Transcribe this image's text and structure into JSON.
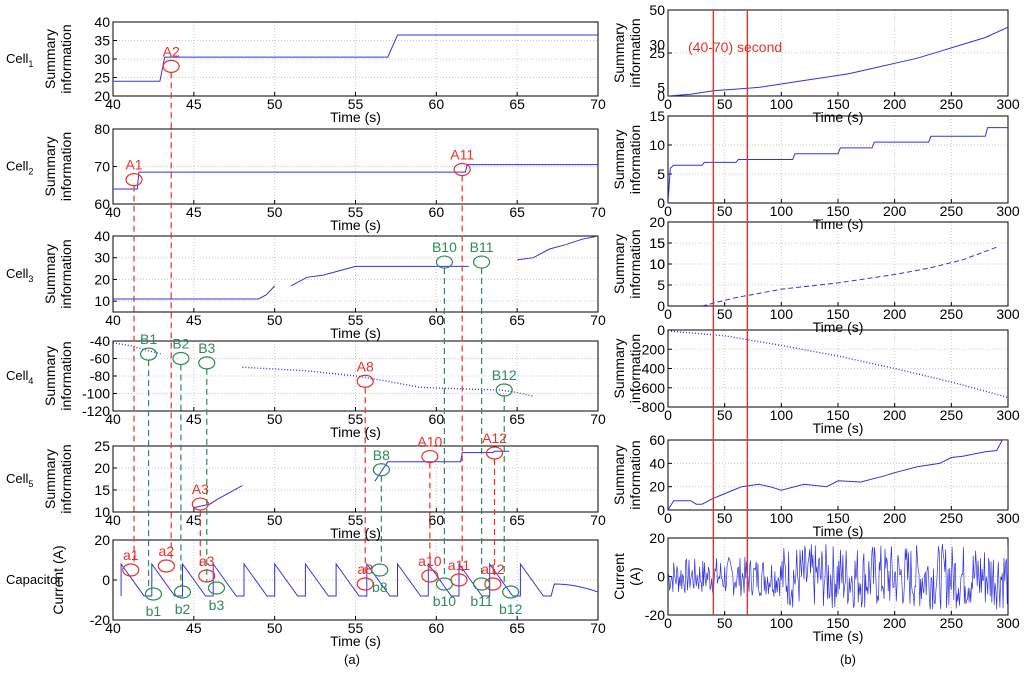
{
  "figure": {
    "panel_labels": [
      "(a)",
      "(b)"
    ],
    "window_label": "(40-70) second",
    "time_label": "Time  (s)",
    "colors": {
      "signal": "#3333dd",
      "red": "#e8302a",
      "green": "#2e8b57",
      "grid": "#c8c8c8"
    }
  },
  "chart_data": [
    {
      "id": "a-cell1",
      "type": "line",
      "row_label": "Cell",
      "row_sub": "1",
      "ylabel": [
        "Summary",
        "information"
      ],
      "xlabel": "Time  (s)",
      "xlim": [
        40,
        70
      ],
      "ylim": [
        20,
        40
      ],
      "xticks": [
        40,
        45,
        50,
        55,
        60,
        65,
        70
      ],
      "yticks": [
        20,
        25,
        30,
        35,
        40
      ],
      "series": [
        {
          "name": "Cell1",
          "style": "line",
          "x": [
            40,
            42.9,
            43.2,
            57,
            57.6,
            70
          ],
          "y": [
            24,
            24,
            30.5,
            30.5,
            36.5,
            36.5
          ]
        }
      ],
      "annotations": [
        {
          "label": "A2",
          "x": 43.6,
          "y": 28,
          "color": "red"
        }
      ]
    },
    {
      "id": "a-cell2",
      "type": "line",
      "row_label": "Cell",
      "row_sub": "2",
      "ylabel": [
        "Summary",
        "information"
      ],
      "xlabel": "Time  (s)",
      "xlim": [
        40,
        70
      ],
      "ylim": [
        60,
        80
      ],
      "xticks": [
        40,
        45,
        50,
        55,
        60,
        65,
        70
      ],
      "yticks": [
        60,
        70,
        80
      ],
      "series": [
        {
          "name": "Cell2",
          "style": "line",
          "x": [
            40,
            41.5,
            41.6,
            61.8,
            61.9,
            70
          ],
          "y": [
            64,
            64,
            68.5,
            68.5,
            70.5,
            70.5
          ]
        }
      ],
      "annotations": [
        {
          "label": "A1",
          "x": 41.3,
          "y": 66.5,
          "color": "red"
        },
        {
          "label": "A11",
          "x": 61.6,
          "y": 69.2,
          "color": "red"
        }
      ]
    },
    {
      "id": "a-cell3",
      "type": "line",
      "row_label": "Cell",
      "row_sub": "3",
      "ylabel": [
        "Summary",
        "information"
      ],
      "xlabel": "Time  (s)",
      "xlim": [
        40,
        70
      ],
      "ylim": [
        5,
        40
      ],
      "xticks": [
        40,
        45,
        50,
        55,
        60,
        65,
        70
      ],
      "yticks": [
        10,
        20,
        30,
        40
      ],
      "series": [
        {
          "name": "s1",
          "style": "line",
          "x": [
            40,
            49,
            49.5,
            50
          ],
          "y": [
            11,
            11,
            13,
            17
          ]
        },
        {
          "name": "s2",
          "style": "line",
          "x": [
            51,
            52,
            53,
            55,
            62
          ],
          "y": [
            17,
            21,
            22,
            26,
            26
          ]
        },
        {
          "name": "s3",
          "style": "line",
          "x": [
            65,
            66,
            67,
            68,
            69,
            70
          ],
          "y": [
            29,
            30,
            34,
            36,
            38.5,
            40
          ]
        }
      ],
      "annotations": [
        {
          "label": "B10",
          "x": 60.5,
          "y": 28,
          "color": "green"
        },
        {
          "label": "B11",
          "x": 62.8,
          "y": 28,
          "color": "green"
        }
      ]
    },
    {
      "id": "a-cell4",
      "type": "line",
      "row_label": "Cell",
      "row_sub": "4",
      "ylabel": [
        "Summary",
        "information"
      ],
      "xlabel": "Time  (s)",
      "xlim": [
        40,
        70
      ],
      "ylim": [
        -120,
        -40
      ],
      "xticks": [
        40,
        45,
        50,
        55,
        60,
        65,
        70
      ],
      "yticks": [
        -120,
        -100,
        -80,
        -60,
        -40
      ],
      "series": [
        {
          "name": "s1",
          "style": "dotted",
          "x": [
            40,
            41,
            42,
            43
          ],
          "y": [
            -42,
            -45,
            -50,
            -55
          ]
        },
        {
          "name": "s2",
          "style": "dotted",
          "x": [
            48,
            50,
            52,
            55,
            57,
            59,
            62,
            64,
            65,
            66
          ],
          "y": [
            -70,
            -72,
            -74,
            -80,
            -86,
            -93,
            -95,
            -96,
            -99,
            -103
          ]
        }
      ],
      "annotations": [
        {
          "label": "B1",
          "x": 42.2,
          "y": -55,
          "color": "green"
        },
        {
          "label": "B2",
          "x": 44.2,
          "y": -60,
          "color": "green"
        },
        {
          "label": "B3",
          "x": 45.8,
          "y": -65,
          "color": "green"
        },
        {
          "label": "A8",
          "x": 55.6,
          "y": -86,
          "color": "red"
        },
        {
          "label": "B12",
          "x": 64.2,
          "y": -96,
          "color": "green"
        }
      ]
    },
    {
      "id": "a-cell5",
      "type": "line",
      "row_label": "Cell",
      "row_sub": "5",
      "ylabel": [
        "Summary",
        "information"
      ],
      "xlabel": "Time  (s)",
      "xlim": [
        40,
        70
      ],
      "ylim": [
        10,
        25
      ],
      "xticks": [
        40,
        45,
        50,
        55,
        60,
        65,
        70
      ],
      "yticks": [
        10,
        15,
        20,
        25
      ],
      "series": [
        {
          "name": "s1",
          "style": "line",
          "x": [
            45,
            46,
            46.5,
            47,
            48
          ],
          "y": [
            11,
            11.8,
            13,
            14,
            16
          ]
        },
        {
          "name": "s2",
          "style": "line",
          "x": [
            56.2,
            57,
            57.4,
            61.5,
            61.6,
            63.5,
            63.6,
            64.5
          ],
          "y": [
            17,
            21.4,
            21.4,
            21.4,
            23.5,
            23.5,
            23.8,
            23.8
          ]
        }
      ],
      "annotations": [
        {
          "label": "A3",
          "x": 45.4,
          "y": 11.8,
          "color": "red"
        },
        {
          "label": "B8",
          "x": 56.6,
          "y": 19.6,
          "color": "green"
        },
        {
          "label": "A10",
          "x": 59.6,
          "y": 22.6,
          "color": "red"
        },
        {
          "label": "A12",
          "x": 63.6,
          "y": 23.4,
          "color": "red"
        }
      ]
    },
    {
      "id": "a-capacitor",
      "type": "line",
      "row_label": "Capacitor",
      "ylabel": [
        "Current (A)"
      ],
      "xlabel": "Time  (s)",
      "xlim": [
        40,
        70
      ],
      "ylim": [
        -20,
        20
      ],
      "xticks": [
        40,
        45,
        50,
        55,
        60,
        65,
        70
      ],
      "yticks": [
        -20,
        0,
        20
      ],
      "series": [
        {
          "name": "current",
          "style": "sawtooth",
          "start": 40.5,
          "period": 1.9,
          "cycles": 14,
          "high": 8,
          "low": -8
        }
      ],
      "annotations": [
        {
          "label": "a1",
          "x": 41.1,
          "y": 5,
          "color": "red",
          "pos": "above"
        },
        {
          "label": "a2",
          "x": 43.3,
          "y": 7,
          "color": "red",
          "pos": "above"
        },
        {
          "label": "a3",
          "x": 45.8,
          "y": 2,
          "color": "red",
          "pos": "above"
        },
        {
          "label": "a8",
          "x": 55.6,
          "y": -2,
          "color": "red",
          "pos": "above"
        },
        {
          "label": "a10",
          "x": 59.6,
          "y": 2,
          "color": "red",
          "pos": "above"
        },
        {
          "label": "a11",
          "x": 61.4,
          "y": 0,
          "color": "red",
          "pos": "above"
        },
        {
          "label": "a12",
          "x": 63.5,
          "y": -2,
          "color": "red",
          "pos": "above"
        },
        {
          "label": "b1",
          "x": 42.5,
          "y": -7,
          "color": "green",
          "pos": "below"
        },
        {
          "label": "b2",
          "x": 44.3,
          "y": -6,
          "color": "green",
          "pos": "below"
        },
        {
          "label": "b3",
          "x": 46.4,
          "y": -4,
          "color": "green",
          "pos": "below"
        },
        {
          "label": "b8",
          "x": 56.5,
          "y": 5,
          "color": "green",
          "pos": "below"
        },
        {
          "label": "b10",
          "x": 60.5,
          "y": -2,
          "color": "green",
          "pos": "below"
        },
        {
          "label": "b11",
          "x": 62.8,
          "y": -2,
          "color": "green",
          "pos": "below"
        },
        {
          "label": "b12",
          "x": 64.6,
          "y": -6,
          "color": "green",
          "pos": "below"
        }
      ]
    },
    {
      "id": "b-cell1",
      "type": "line",
      "ylabel": [
        "Summary",
        "information"
      ],
      "xlabel": "Time  (s)",
      "xlim": [
        0,
        300
      ],
      "ylim": [
        0,
        50
      ],
      "xticks": [
        0,
        50,
        100,
        150,
        200,
        250,
        300
      ],
      "yticks": [
        0,
        25,
        50
      ],
      "overlap_ticks": [
        5,
        30
      ],
      "series": [
        {
          "name": "Cell1",
          "style": "line",
          "x": [
            0,
            20,
            40,
            60,
            80,
            100,
            120,
            140,
            160,
            180,
            200,
            220,
            240,
            260,
            280,
            300
          ],
          "y": [
            0,
            1,
            3,
            4,
            5,
            7,
            9,
            11,
            13,
            16,
            19,
            22,
            26,
            30,
            34,
            40
          ]
        }
      ]
    },
    {
      "id": "b-cell2",
      "type": "line",
      "ylabel": [
        "Summary",
        "information"
      ],
      "xlabel": "Time  (s)",
      "xlim": [
        0,
        300
      ],
      "ylim": [
        0,
        15
      ],
      "xticks": [
        0,
        50,
        100,
        150,
        200,
        250,
        300
      ],
      "yticks": [
        0,
        5,
        10
      ],
      "overlap_ticks": [
        15
      ],
      "series": [
        {
          "name": "Cell2",
          "style": "line",
          "x": [
            0,
            2,
            5,
            30,
            32,
            60,
            62,
            110,
            112,
            150,
            152,
            180,
            182,
            230,
            232,
            280,
            282,
            300
          ],
          "y": [
            0,
            6,
            6.5,
            6.5,
            7,
            7,
            7.5,
            7.5,
            8.5,
            8.5,
            9.5,
            9.5,
            10.5,
            10.5,
            11.5,
            11.5,
            13,
            13
          ]
        }
      ]
    },
    {
      "id": "b-cell3",
      "type": "line",
      "ylabel": [
        "Summary",
        "information"
      ],
      "xlabel": "Time  (s)",
      "xlim": [
        0,
        300
      ],
      "ylim": [
        0,
        20
      ],
      "xticks": [
        0,
        50,
        100,
        150,
        200,
        250,
        300
      ],
      "yticks": [
        0,
        5,
        10,
        15,
        20
      ],
      "overlap_ticks": [
        10,
        15
      ],
      "series": [
        {
          "name": "Cell3",
          "style": "dashed",
          "x": [
            30,
            60,
            100,
            150,
            200,
            230,
            260,
            290
          ],
          "y": [
            0,
            2,
            4,
            5.5,
            7.5,
            9,
            11,
            14
          ]
        }
      ]
    },
    {
      "id": "b-cell4",
      "type": "line",
      "ylabel": [
        "Summary",
        "information"
      ],
      "xlabel": "Time  (s)",
      "xlim": [
        0,
        300
      ],
      "ylim": [
        -800,
        0
      ],
      "xticks": [
        0,
        50,
        100,
        150,
        200,
        250,
        300
      ],
      "yticks": [
        -800,
        -600,
        -400,
        -200,
        0
      ],
      "series": [
        {
          "name": "Cell4",
          "style": "dotted",
          "x": [
            0,
            50,
            100,
            150,
            200,
            250,
            300
          ],
          "y": [
            -10,
            -60,
            -160,
            -270,
            -400,
            -540,
            -700
          ]
        }
      ]
    },
    {
      "id": "b-cell5",
      "type": "line",
      "ylabel": [
        "Summary",
        "information"
      ],
      "xlabel": "Time  (s)",
      "xlim": [
        0,
        300
      ],
      "ylim": [
        0,
        60
      ],
      "xticks": [
        0,
        50,
        100,
        150,
        200,
        250,
        300
      ],
      "yticks": [
        0,
        20,
        40,
        60
      ],
      "series": [
        {
          "name": "Cell5",
          "style": "line",
          "x": [
            0,
            5,
            20,
            25,
            30,
            40,
            45,
            60,
            65,
            80,
            90,
            100,
            120,
            140,
            150,
            170,
            190,
            200,
            220,
            240,
            250,
            260,
            280,
            290,
            295,
            300
          ],
          "y": [
            0,
            8,
            8,
            5,
            5,
            10,
            12,
            18,
            20,
            22,
            20,
            17,
            22,
            20,
            25,
            24,
            29,
            32,
            37,
            40,
            45,
            46,
            50,
            51,
            60,
            60
          ]
        }
      ]
    },
    {
      "id": "b-capacitor",
      "type": "line",
      "ylabel": [
        "Current",
        "(A)"
      ],
      "xlabel": "Time  (s)",
      "xlim": [
        0,
        300
      ],
      "ylim": [
        -20,
        20
      ],
      "xticks": [
        0,
        50,
        100,
        150,
        200,
        250,
        300
      ],
      "yticks": [
        -20,
        0
      ],
      "overlap_ticks": [
        20
      ],
      "series": [
        {
          "name": "current",
          "style": "noise",
          "amplitude": [
            10,
            18
          ]
        }
      ]
    }
  ]
}
